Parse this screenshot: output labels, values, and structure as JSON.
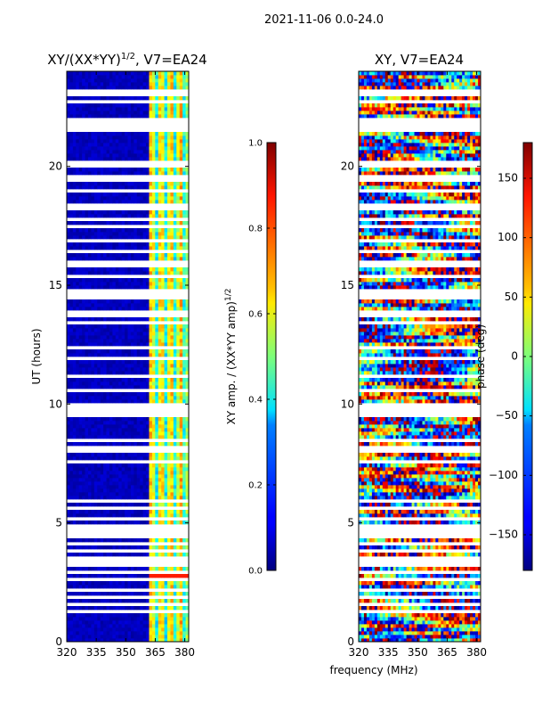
{
  "chart_data": {
    "type": "heatmap",
    "suptitle": "2021-11-06 0.0-24.0",
    "shared_xlabel": "frequency (MHz)",
    "panels": [
      {
        "id": "amp",
        "title": "XY/(XX*YY)",
        "title_superscript": "1/2",
        "title_suffix": ", V7=EA24",
        "ylabel": "UT (hours)",
        "xlim": [
          320,
          382
        ],
        "ylim": [
          0,
          24
        ],
        "xticks": [
          320,
          335,
          350,
          365,
          380
        ],
        "yticks": [
          0,
          5,
          10,
          15,
          20
        ],
        "colorbar": {
          "label_main": "XY amp. / (XX*YY amp)",
          "label_superscript": "1/2",
          "range": [
            0.0,
            1.0
          ],
          "ticks": [
            "0.0",
            "0.2",
            "0.4",
            "0.6",
            "0.8",
            "1.0"
          ],
          "tick_values": [
            0.0,
            0.2,
            0.4,
            0.6,
            0.8,
            1.0
          ],
          "colormap": "jet"
        },
        "description": "Mostly low values (deep blue) below 360 MHz; elevated values (cyan-yellow) in 362-382 MHz band with vertical stripes; white gaps are flagged times",
        "band_hot_mhz": [
          362,
          382
        ]
      },
      {
        "id": "phase",
        "title": "XY, V7=EA24",
        "xlim": [
          320,
          382
        ],
        "ylim": [
          0,
          24
        ],
        "xticks": [
          320,
          335,
          350,
          365,
          380
        ],
        "yticks": [
          0,
          5,
          10,
          15,
          20
        ],
        "colorbar": {
          "label_main": "phase (deg)",
          "range": [
            -180,
            180
          ],
          "ticks": [
            "150",
            "100",
            "50",
            "0",
            "−50",
            "−100",
            "−150"
          ],
          "tick_values": [
            150,
            100,
            50,
            0,
            -50,
            -100,
            -150
          ],
          "colormap": "jet"
        },
        "description": "Noisy phase across full band; phase wraps between -180 and 180 degrees with horizontal bands; white gaps are flagged times"
      }
    ],
    "flagged_gap_hours": [
      23.1,
      22.7,
      21.9,
      21.6,
      20.1,
      19.5,
      19.0,
      18.3,
      17.8,
      17.5,
      16.9,
      16.4,
      15.9,
      15.4,
      14.7,
      14.5,
      13.8,
      13.4,
      12.4,
      11.9,
      11.2,
      10.6,
      9.9,
      9.6,
      8.5,
      8.1,
      7.6,
      5.9,
      5.6,
      5.2,
      4.8,
      4.5,
      4.1,
      3.8,
      3.5,
      3.3,
      2.9,
      2.6,
      2.2,
      1.9,
      1.6,
      1.3
    ]
  }
}
